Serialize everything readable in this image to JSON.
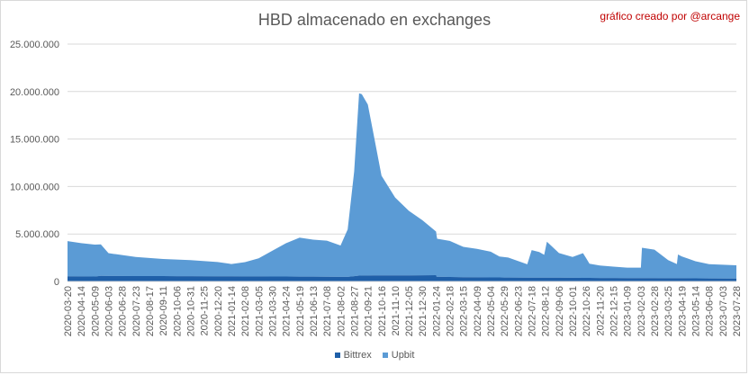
{
  "title": "HBD almacenado en exchanges",
  "credit": "gráfico creado por @arcange",
  "chart_data": {
    "type": "area",
    "stacked": true,
    "title": "HBD almacenado en exchanges",
    "ylim": [
      0,
      25000000
    ],
    "y_ticks": [
      "0",
      "5.000.000",
      "10.000.000",
      "15.000.000",
      "20.000.000",
      "25.000.000"
    ],
    "grid": true,
    "legend": "bottom",
    "x_ticks": [
      "2020-03-20",
      "2020-04-14",
      "2020-05-09",
      "2020-06-03",
      "2020-06-28",
      "2020-07-23",
      "2020-08-17",
      "2020-09-11",
      "2020-10-06",
      "2020-10-31",
      "2020-11-25",
      "2020-12-20",
      "2021-01-14",
      "2021-02-08",
      "2021-03-05",
      "2021-03-30",
      "2021-04-24",
      "2021-05-19",
      "2021-06-13",
      "2021-07-08",
      "2021-08-02",
      "2021-08-27",
      "2021-09-21",
      "2021-10-16",
      "2021-11-10",
      "2021-12-05",
      "2021-12-30",
      "2022-01-24",
      "2022-02-18",
      "2022-03-15",
      "2022-04-09",
      "2022-05-04",
      "2022-05-29",
      "2022-06-23",
      "2022-07-18",
      "2022-08-12",
      "2022-09-06",
      "2022-10-01",
      "2022-10-26",
      "2022-11-20",
      "2022-12-15",
      "2023-01-09",
      "2023-02-03",
      "2023-02-28",
      "2023-03-25",
      "2023-04-19",
      "2023-05-14",
      "2023-06-08",
      "2023-07-03",
      "2023-07-28"
    ],
    "series": [
      {
        "name": "Bittrex",
        "color": "#1f5fa8",
        "x": [
          "2020-03-20",
          "2020-05-09",
          "2020-05-20",
          "2020-06-03",
          "2020-10-06",
          "2021-01-14",
          "2021-04-24",
          "2021-07-08",
          "2021-08-15",
          "2021-08-27",
          "2021-09-05",
          "2021-10-16",
          "2021-12-30",
          "2022-01-24",
          "2022-01-25",
          "2022-03-15",
          "2022-05-29",
          "2022-08-12",
          "2022-10-26",
          "2023-01-09",
          "2023-04-19",
          "2023-06-08",
          "2023-07-28"
        ],
        "values": [
          550000,
          520000,
          600000,
          580000,
          560000,
          540000,
          520000,
          500000,
          480000,
          560000,
          620000,
          640000,
          650000,
          660000,
          500000,
          450000,
          420000,
          400000,
          380000,
          360000,
          340000,
          320000,
          300000
        ]
      },
      {
        "name": "Upbit",
        "color": "#5b9bd5",
        "x": [
          "2020-03-20",
          "2020-04-14",
          "2020-05-20",
          "2020-06-03",
          "2020-07-23",
          "2020-09-11",
          "2020-10-31",
          "2020-12-20",
          "2021-01-14",
          "2021-02-08",
          "2021-03-05",
          "2021-03-30",
          "2021-04-24",
          "2021-05-19",
          "2021-06-13",
          "2021-07-08",
          "2021-08-02",
          "2021-08-15",
          "2021-08-27",
          "2021-09-05",
          "2021-09-10",
          "2021-09-21",
          "2021-10-01",
          "2021-10-16",
          "2021-11-10",
          "2021-12-05",
          "2021-12-30",
          "2022-01-24",
          "2022-01-26",
          "2022-02-18",
          "2022-03-15",
          "2022-04-09",
          "2022-05-04",
          "2022-05-20",
          "2022-06-05",
          "2022-07-10",
          "2022-07-18",
          "2022-08-01",
          "2022-08-10",
          "2022-08-15",
          "2022-09-06",
          "2022-10-01",
          "2022-10-20",
          "2022-11-01",
          "2022-11-20",
          "2022-12-15",
          "2023-01-09",
          "2023-02-03",
          "2023-02-05",
          "2023-02-28",
          "2023-03-25",
          "2023-04-10",
          "2023-04-12",
          "2023-04-19",
          "2023-05-14",
          "2023-06-08",
          "2023-07-28"
        ],
        "values": [
          3700000,
          3500000,
          3300000,
          2400000,
          2000000,
          1800000,
          1700000,
          1500000,
          1300000,
          1500000,
          1900000,
          2700000,
          3500000,
          4100000,
          3900000,
          3800000,
          3300000,
          5000000,
          11000000,
          19200000,
          19100000,
          18000000,
          15000000,
          10500000,
          8200000,
          6800000,
          5800000,
          4600000,
          4000000,
          3800000,
          3200000,
          3000000,
          2700000,
          2200000,
          2100000,
          1400000,
          2900000,
          2700000,
          2400000,
          3800000,
          2600000,
          2200000,
          2600000,
          1500000,
          1300000,
          1200000,
          1100000,
          1100000,
          3200000,
          3000000,
          1900000,
          1500000,
          2500000,
          2300000,
          1800000,
          1500000,
          1400000
        ]
      }
    ]
  },
  "legend": {
    "items": [
      {
        "label": "Bittrex",
        "color": "#1f5fa8"
      },
      {
        "label": "Upbit",
        "color": "#5b9bd5"
      }
    ]
  }
}
